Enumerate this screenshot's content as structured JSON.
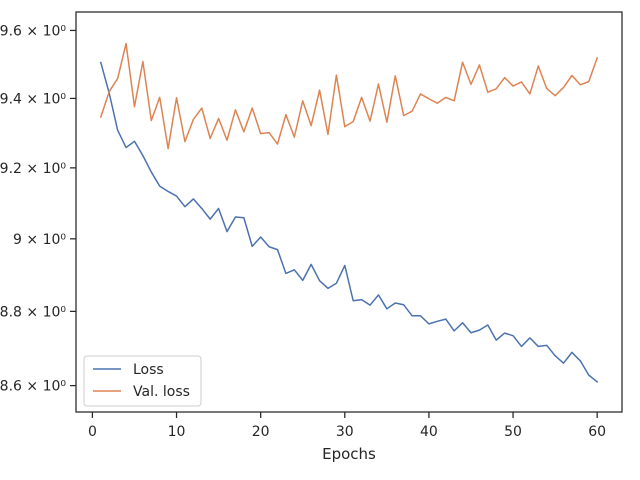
{
  "chart_data": {
    "type": "line",
    "xlabel": "Epochs",
    "ylabel": "",
    "x_scale": "linear",
    "y_scale": "log",
    "xlim": [
      -1.95,
      62.95
    ],
    "ylim": [
      8.53,
      9.655
    ],
    "x_ticks": [
      0,
      10,
      20,
      30,
      40,
      50,
      60
    ],
    "x_tick_labels": [
      "0",
      "10",
      "20",
      "30",
      "40",
      "50",
      "60"
    ],
    "y_ticks": [
      8.6,
      8.8,
      9.0,
      9.2,
      9.4,
      9.6
    ],
    "y_tick_labels": [
      "8.6 × 10⁰",
      "8.8 × 10⁰",
      "9 × 10⁰",
      "9.2 × 10⁰",
      "9.4 × 10⁰",
      "9.6 × 10⁰"
    ],
    "grid": false,
    "legend_position": "lower-left",
    "colors": {
      "Loss": "#4c72b0",
      "Val. loss": "#dd8452",
      "axes": "#262626"
    },
    "x": [
      1,
      2,
      3,
      4,
      5,
      6,
      7,
      8,
      9,
      10,
      11,
      12,
      13,
      14,
      15,
      16,
      17,
      18,
      19,
      20,
      21,
      22,
      23,
      24,
      25,
      26,
      27,
      28,
      29,
      30,
      31,
      32,
      33,
      34,
      35,
      36,
      37,
      38,
      39,
      40,
      41,
      42,
      43,
      44,
      45,
      46,
      47,
      48,
      49,
      50,
      51,
      52,
      53,
      54,
      55,
      56,
      57,
      58,
      59,
      60
    ],
    "series": [
      {
        "name": "Loss",
        "values": [
          9.505,
          9.415,
          9.308,
          9.258,
          9.276,
          9.235,
          9.188,
          9.148,
          9.133,
          9.12,
          9.09,
          9.112,
          9.085,
          9.055,
          9.085,
          9.02,
          9.061,
          9.059,
          8.979,
          9.005,
          8.978,
          8.97,
          8.904,
          8.914,
          8.885,
          8.929,
          8.884,
          8.863,
          8.877,
          8.926,
          8.829,
          8.832,
          8.817,
          8.845,
          8.807,
          8.823,
          8.818,
          8.788,
          8.788,
          8.766,
          8.773,
          8.779,
          8.747,
          8.769,
          8.742,
          8.749,
          8.763,
          8.722,
          8.741,
          8.734,
          8.705,
          8.728,
          8.705,
          8.708,
          8.68,
          8.66,
          8.689,
          8.666,
          8.628,
          8.61
        ]
      },
      {
        "name": "Val. loss",
        "values": [
          9.346,
          9.42,
          9.458,
          9.561,
          9.376,
          9.508,
          9.336,
          9.403,
          9.255,
          9.402,
          9.275,
          9.339,
          9.372,
          9.284,
          9.342,
          9.279,
          9.367,
          9.303,
          9.372,
          9.298,
          9.301,
          9.268,
          9.353,
          9.288,
          9.393,
          9.321,
          9.424,
          9.296,
          9.468,
          9.318,
          9.333,
          9.403,
          9.334,
          9.442,
          9.331,
          9.466,
          9.35,
          9.363,
          9.413,
          9.399,
          9.386,
          9.403,
          9.393,
          9.506,
          9.441,
          9.498,
          9.418,
          9.428,
          9.461,
          9.436,
          9.448,
          9.413,
          9.495,
          9.429,
          9.408,
          9.432,
          9.467,
          9.44,
          9.449,
          9.519
        ]
      }
    ]
  }
}
